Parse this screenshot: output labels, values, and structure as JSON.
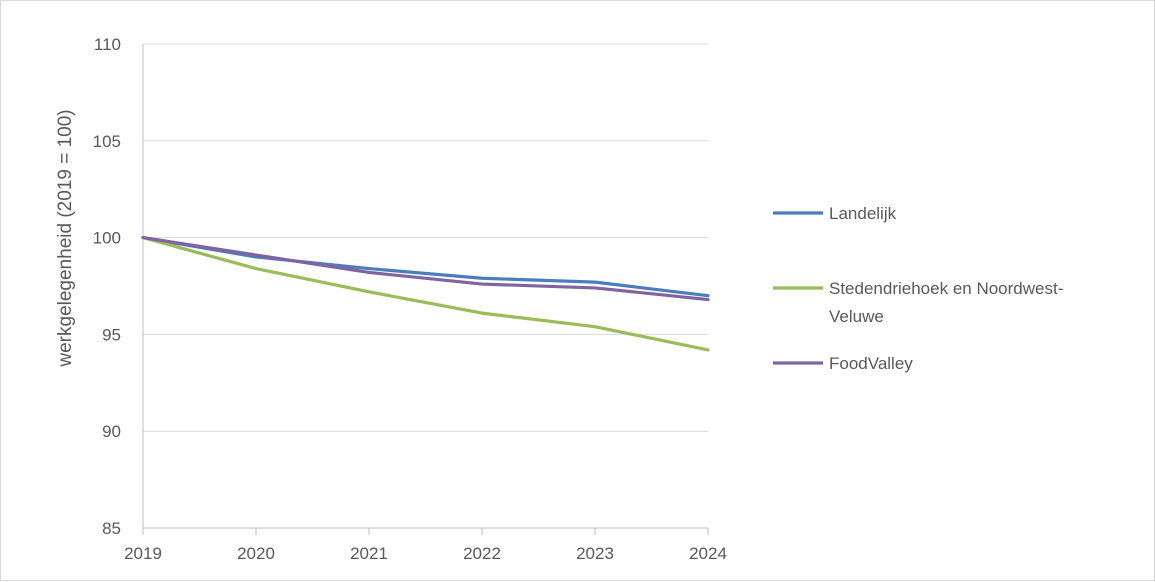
{
  "chart_data": {
    "type": "line",
    "x": [
      "2019",
      "2020",
      "2021",
      "2022",
      "2023",
      "2024"
    ],
    "series": [
      {
        "name": "Landelijk",
        "color": "#4a7ebb",
        "values": [
          100,
          99.0,
          98.4,
          97.9,
          97.7,
          97.0
        ]
      },
      {
        "name": "Stedendriehoek en Noordwest-Veluwe",
        "color": "#9bbb59",
        "values": [
          100,
          98.4,
          97.2,
          96.1,
          95.4,
          94.2
        ]
      },
      {
        "name": "FoodValley",
        "color": "#8064a2",
        "values": [
          100,
          99.1,
          98.2,
          97.6,
          97.4,
          96.8
        ]
      }
    ],
    "legend_lines": [
      [
        "Landelijk"
      ],
      [
        "Stedendriehoek en Noordwest-",
        "Veluwe"
      ],
      [
        "FoodValley"
      ]
    ],
    "ylabel": "werkgelegenheid (2019 = 100)",
    "xlabel": "",
    "ylim": [
      85,
      110
    ],
    "yticks": [
      "85",
      "90",
      "95",
      "100",
      "105",
      "110"
    ],
    "grid": true,
    "legend_position": "right"
  }
}
